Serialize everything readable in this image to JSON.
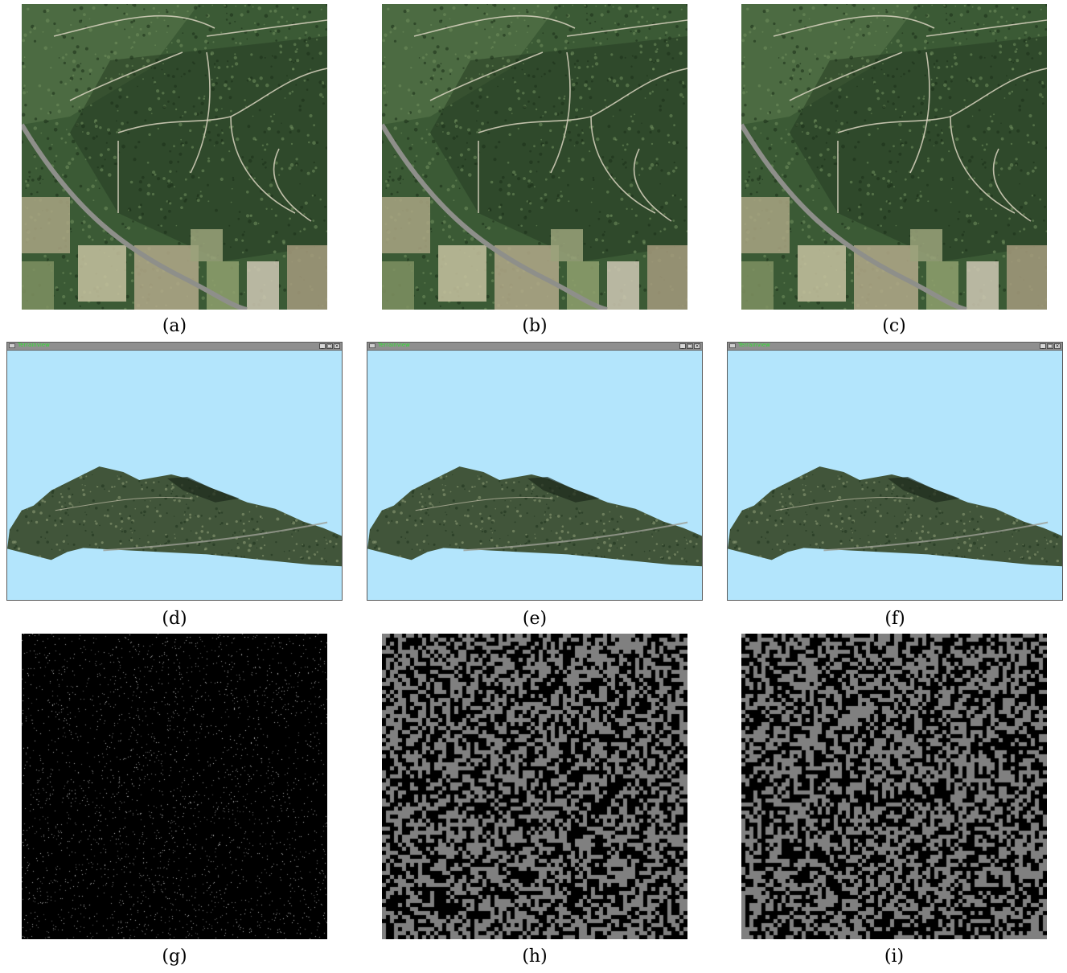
{
  "captions": [
    "(a)",
    "(b)",
    "(c)",
    "(d)",
    "(e)",
    "(f)",
    "(g)",
    "(h)",
    "(i)"
  ],
  "viewer": {
    "window_title": "Terrainview",
    "minimize": "_",
    "maximize": "□",
    "close": "×"
  },
  "colors": {
    "sky": "#b3e5fc",
    "forest": "#2f4a2a",
    "noise_gray": "#808080",
    "noise_black": "#000000"
  }
}
